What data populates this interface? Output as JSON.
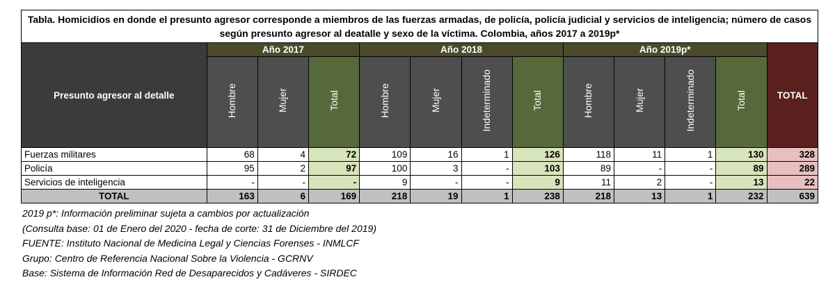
{
  "title": "Tabla. Homicidios en donde el presunto agresor corresponde a miembros de las fuerzas armadas, de policía, policía judicial y servicios de inteligencia; número de casos según presunto agresor al deatalle y sexo de la víctima. Colombia, años 2017 a 2019p*",
  "header": {
    "agent_label": "Presunto agresor al detalle",
    "years": [
      "Año 2017",
      "Año 2018",
      "Año 2019p*"
    ],
    "total_label": "TOTAL",
    "sub_2017": [
      "Hombre",
      "Mujer",
      "Total"
    ],
    "sub_2018": [
      "Hombre",
      "Mujer",
      "Indeterminado",
      "Total"
    ],
    "sub_2019": [
      "Hombre",
      "Mujer",
      "Indeterminado",
      "Total"
    ]
  },
  "rows": [
    {
      "label": "Fuerzas militares",
      "y2017": [
        "68",
        "4",
        "72"
      ],
      "y2018": [
        "109",
        "16",
        "1",
        "126"
      ],
      "y2019": [
        "118",
        "11",
        "1",
        "130"
      ],
      "total": "328"
    },
    {
      "label": "Policía",
      "y2017": [
        "95",
        "2",
        "97"
      ],
      "y2018": [
        "100",
        "3",
        "-",
        "103"
      ],
      "y2019": [
        "89",
        "-",
        "-",
        "89"
      ],
      "total": "289"
    },
    {
      "label": "Servicios de inteligencia",
      "y2017": [
        "-",
        "-",
        "-"
      ],
      "y2018": [
        "9",
        "-",
        "-",
        "9"
      ],
      "y2019": [
        "11",
        "2",
        "-",
        "13"
      ],
      "total": "22"
    }
  ],
  "totals": {
    "label": "TOTAL",
    "y2017": [
      "163",
      "6",
      "169"
    ],
    "y2018": [
      "218",
      "19",
      "1",
      "238"
    ],
    "y2019": [
      "218",
      "13",
      "1",
      "232"
    ],
    "total": "639"
  },
  "notes": [
    "2019 p*: Información preliminar sujeta a cambios por actualización",
    "(Consulta base: 01 de Enero del 2020 - fecha de corte: 31 de Diciembre del 2019)",
    "FUENTE: Instituto Nacional de Medicina Legal y Ciencias Forenses - INMLCF",
    "Grupo: Centro de Referencia Nacional Sobre la Violencia - GCRNV",
    "Base: Sistema de Información Red de Desaparecidos y Cadáveres - SIRDEC"
  ]
}
